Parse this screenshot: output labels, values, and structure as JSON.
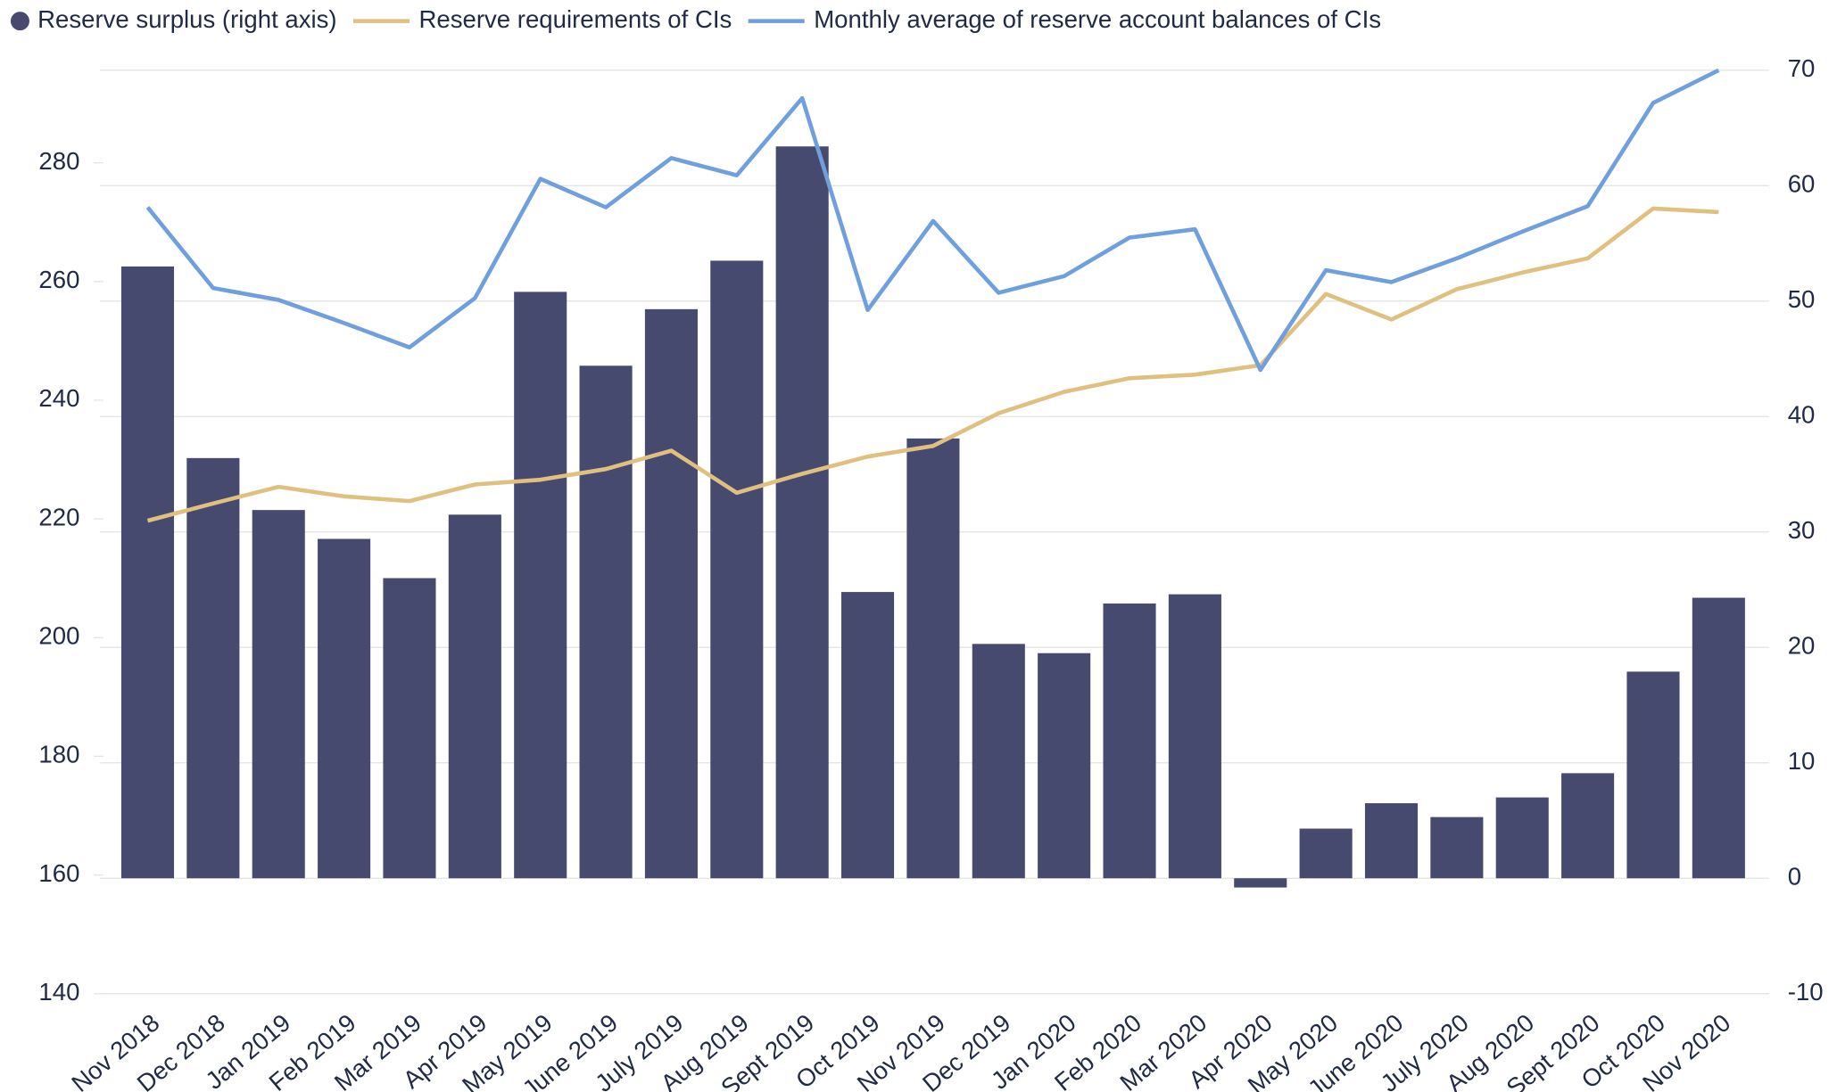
{
  "chart_data": {
    "type": "bar-line",
    "categories": [
      "Nov 2018",
      "Dec 2018",
      "Jan 2019",
      "Feb 2019",
      "Mar 2019",
      "Apr 2019",
      "May 2019",
      "June 2019",
      "July 2019",
      "Aug 2019",
      "Sept 2019",
      "Oct 2019",
      "Nov 2019",
      "Dec 2019",
      "Jan 2020",
      "Feb 2020",
      "Mar 2020",
      "Apr 2020",
      "May 2020",
      "June 2020",
      "July 2020",
      "Aug 2020",
      "Sept 2020",
      "Oct 2020",
      "Nov 2020"
    ],
    "series": [
      {
        "name": "Reserve surplus (right axis)",
        "type": "bar",
        "axis": "y2",
        "color": "#474a6f",
        "values": [
          53.0,
          36.4,
          31.9,
          29.4,
          26.0,
          31.5,
          50.8,
          44.4,
          49.3,
          53.5,
          63.4,
          24.8,
          38.1,
          20.3,
          19.5,
          23.8,
          24.6,
          -0.8,
          4.3,
          6.5,
          5.3,
          7.0,
          9.1,
          17.9,
          24.3
        ]
      },
      {
        "name": "Reserve requirements of CIs",
        "type": "line",
        "color": "#dfc07f",
        "values": [
          219.7,
          222.6,
          225.4,
          223.8,
          223.0,
          225.8,
          226.6,
          228.4,
          231.5,
          224.4,
          227.6,
          230.5,
          232.3,
          237.8,
          241.4,
          243.7,
          244.3,
          245.9,
          257.9,
          253.6,
          258.7,
          261.5,
          263.9,
          272.3,
          271.7
        ]
      },
      {
        "name": "Monthly average of reserve account balances of CIs",
        "type": "line",
        "color": "#6f9fdc",
        "values": [
          272.5,
          258.9,
          256.9,
          253.0,
          248.9,
          257.2,
          277.3,
          272.5,
          280.8,
          277.9,
          290.9,
          255.2,
          270.2,
          258.1,
          260.9,
          267.4,
          268.8,
          245.1,
          261.9,
          259.9,
          263.9,
          268.4,
          272.7,
          290.1,
          295.6
        ]
      }
    ],
    "ylim": [
      140,
      295.6
    ],
    "yticks": [
      140,
      160,
      180,
      200,
      220,
      240,
      260,
      280
    ],
    "y2lim": [
      -10,
      70
    ],
    "y2ticks": [
      -10,
      0,
      10,
      20,
      30,
      40,
      50,
      60,
      70
    ],
    "grid": true,
    "legend": "top"
  }
}
